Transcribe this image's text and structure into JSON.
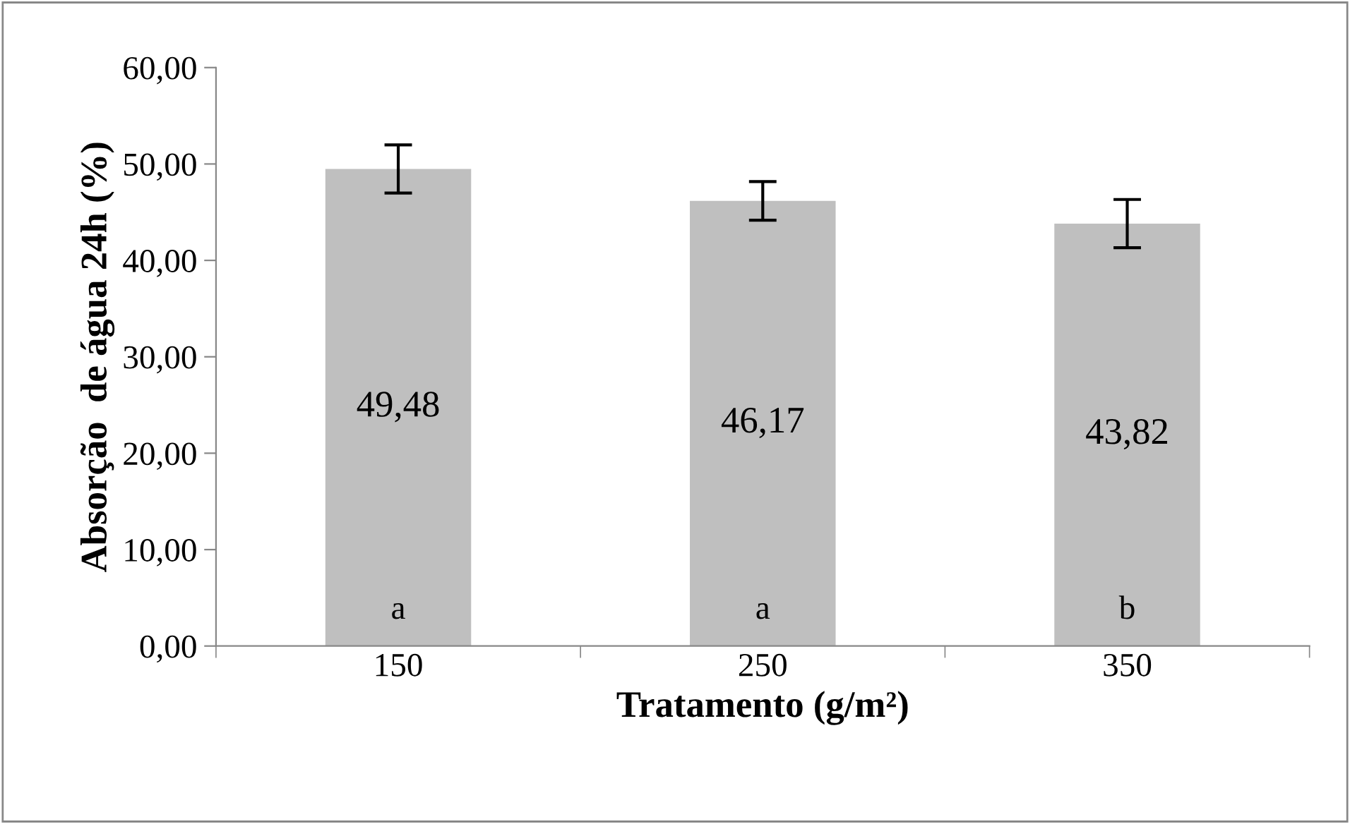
{
  "chart_data": {
    "type": "bar",
    "xlabel": "Tratamento (g/m²)",
    "ylabel": "Absorção  de água 24h (%)",
    "categories": [
      "150",
      "250",
      "350"
    ],
    "values": [
      49.48,
      46.17,
      43.82
    ],
    "value_labels": [
      "49,48",
      "46,17",
      "43,82"
    ],
    "errors": [
      2.5,
      2.0,
      2.5
    ],
    "color": "#bfbfbf",
    "ylim": [
      0,
      60
    ],
    "yticks": [
      {
        "value": 0,
        "label": "0,00"
      },
      {
        "value": 10,
        "label": "10,00"
      },
      {
        "value": 20,
        "label": "20,00"
      },
      {
        "value": 30,
        "label": "30,00"
      },
      {
        "value": 40,
        "label": "40,00"
      },
      {
        "value": 50,
        "label": "50,00"
      },
      {
        "value": 60,
        "label": "60,00"
      }
    ],
    "annotations": [
      "a",
      "a",
      "b"
    ],
    "grid": false,
    "legend": false
  }
}
